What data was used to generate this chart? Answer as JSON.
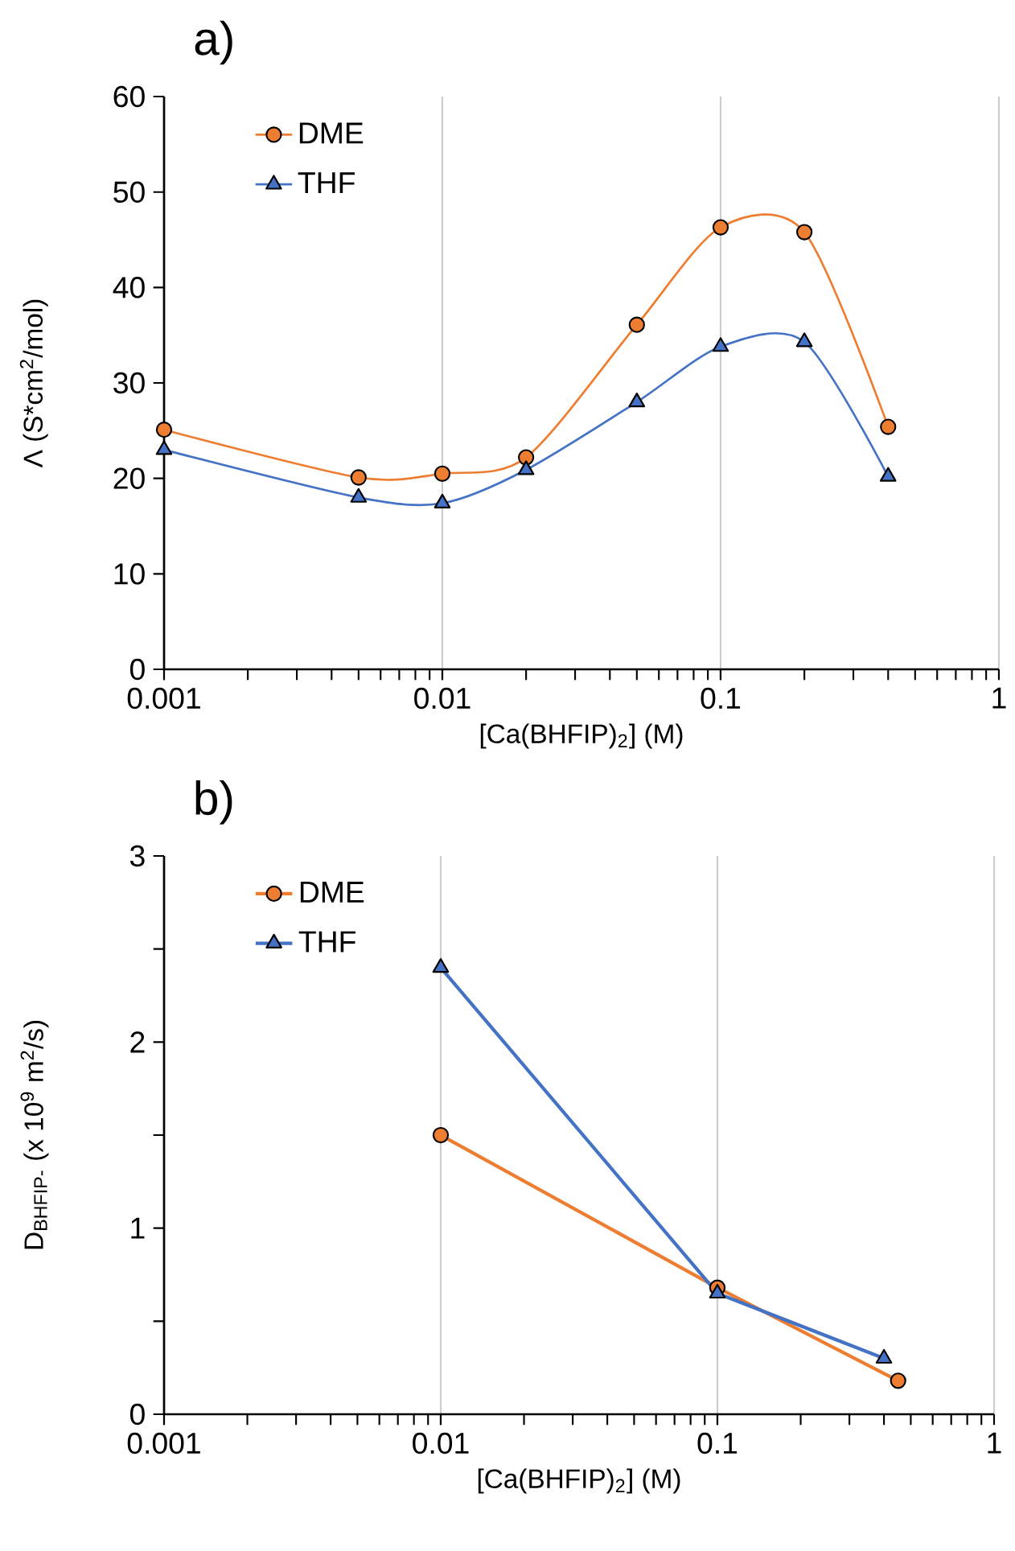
{
  "chart_data": [
    {
      "type": "line",
      "title": "a)",
      "xlabel": "[Ca(BHFIP)$_{2}$] (M)",
      "ylabel": "Λ (S*cm$^{2}$/mol)",
      "log": "x",
      "grid": "x",
      "legend": "top left",
      "xlim": [
        0.001,
        1
      ],
      "xticks": [
        0.001,
        0.01,
        0.1,
        1
      ],
      "ylim": [
        0,
        60
      ],
      "yticks": [
        0,
        10,
        20,
        30,
        40,
        50,
        60
      ],
      "series": [
        {
          "name": "DME",
          "color": "#ed7d31",
          "marker": "circle",
          "x": [
            0.001,
            0.005,
            0.01,
            0.02,
            0.05,
            0.1,
            0.2,
            0.4
          ],
          "values": [
            25.1,
            20.1,
            20.5,
            22.2,
            36.1,
            46.3,
            45.8,
            25.4
          ]
        },
        {
          "name": "THF",
          "color": "#4472c4",
          "marker": "triangle",
          "x": [
            0.001,
            0.005,
            0.01,
            0.02,
            0.05,
            0.1,
            0.2,
            0.4
          ],
          "values": [
            23.0,
            18.0,
            17.4,
            20.9,
            28.0,
            33.8,
            34.3,
            20.2
          ]
        }
      ]
    },
    {
      "type": "line",
      "title": "b)",
      "xlabel": "[Ca(BHFIP)$_{2}$] (M)",
      "ylabel": "D$_{BHFIP-}$ (x 10$^{9}$ m$^{2}$/s)",
      "log": "x",
      "grid": "x",
      "legend": "top left",
      "xlim": [
        0.001,
        1
      ],
      "xticks": [
        0.001,
        0.01,
        0.1,
        1
      ],
      "ylim": [
        0,
        3
      ],
      "yticks": [
        0,
        {
          "value": 0.5,
          "label": null
        },
        1,
        {
          "value": 1.5,
          "label": null
        },
        2,
        {
          "value": 2.5,
          "label": null
        },
        3
      ],
      "series": [
        {
          "name": "DME",
          "color": "#ed7d31",
          "marker": "circle",
          "x": [
            0.01,
            0.1,
            0.45
          ],
          "values": [
            1.5,
            0.68,
            0.18
          ]
        },
        {
          "name": "THF",
          "color": "#4472c4",
          "marker": "triangle",
          "x": [
            0.01,
            0.1,
            0.4
          ],
          "values": [
            2.4,
            0.65,
            0.3
          ]
        }
      ]
    }
  ]
}
